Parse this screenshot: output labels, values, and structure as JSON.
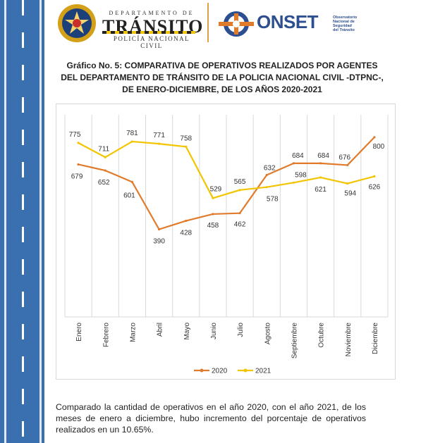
{
  "header": {
    "dept_small": "DEPARTAMENTO DE",
    "dept_big": "TRÁNSITO",
    "dept_sub": "POLICÍA NACIONAL CIVIL",
    "onset_name": "ONSET",
    "onset_sub": [
      "Observatorio",
      "Nacional de",
      "Seguridad",
      "del Tránsito"
    ]
  },
  "title": {
    "label": "Gráfico No. 5:",
    "line1": "COMPARATIVA DE OPERATIVOS REALIZADOS POR AGENTES",
    "line2": "DEL DEPARTAMENTO DE TRÁNSITO DE LA POLICIA NACIONAL CIVIL -DTPNC-,",
    "line3": "DE ENERO-DICIEMBRE, DE LOS AÑOS 2020-2021"
  },
  "chart_data": {
    "type": "line",
    "categories": [
      "Enero",
      "Febrero",
      "Marzo",
      "Abril",
      "Mayo",
      "Junio",
      "Julio",
      "Agosto",
      "Septiembre",
      "Octubre",
      "Noviembre",
      "Diciembre"
    ],
    "series": [
      {
        "name": "2020",
        "color": "#e07b2c",
        "values": [
          679,
          652,
          601,
          390,
          428,
          458,
          462,
          632,
          684,
          684,
          676,
          800
        ]
      },
      {
        "name": "2021",
        "color": "#f2c500",
        "values": [
          775,
          711,
          781,
          771,
          758,
          529,
          565,
          578,
          598,
          621,
          594,
          626
        ]
      }
    ],
    "ylim": [
      0,
      900
    ],
    "grid": "vertical",
    "legend": "bottom"
  },
  "footer": {
    "text": "Comparado la cantidad de operativos en el año 2020, con el año 2021, de los meses de enero a diciembre, hubo incremento del porcentaje de operativos realizados en un 10.65%."
  }
}
